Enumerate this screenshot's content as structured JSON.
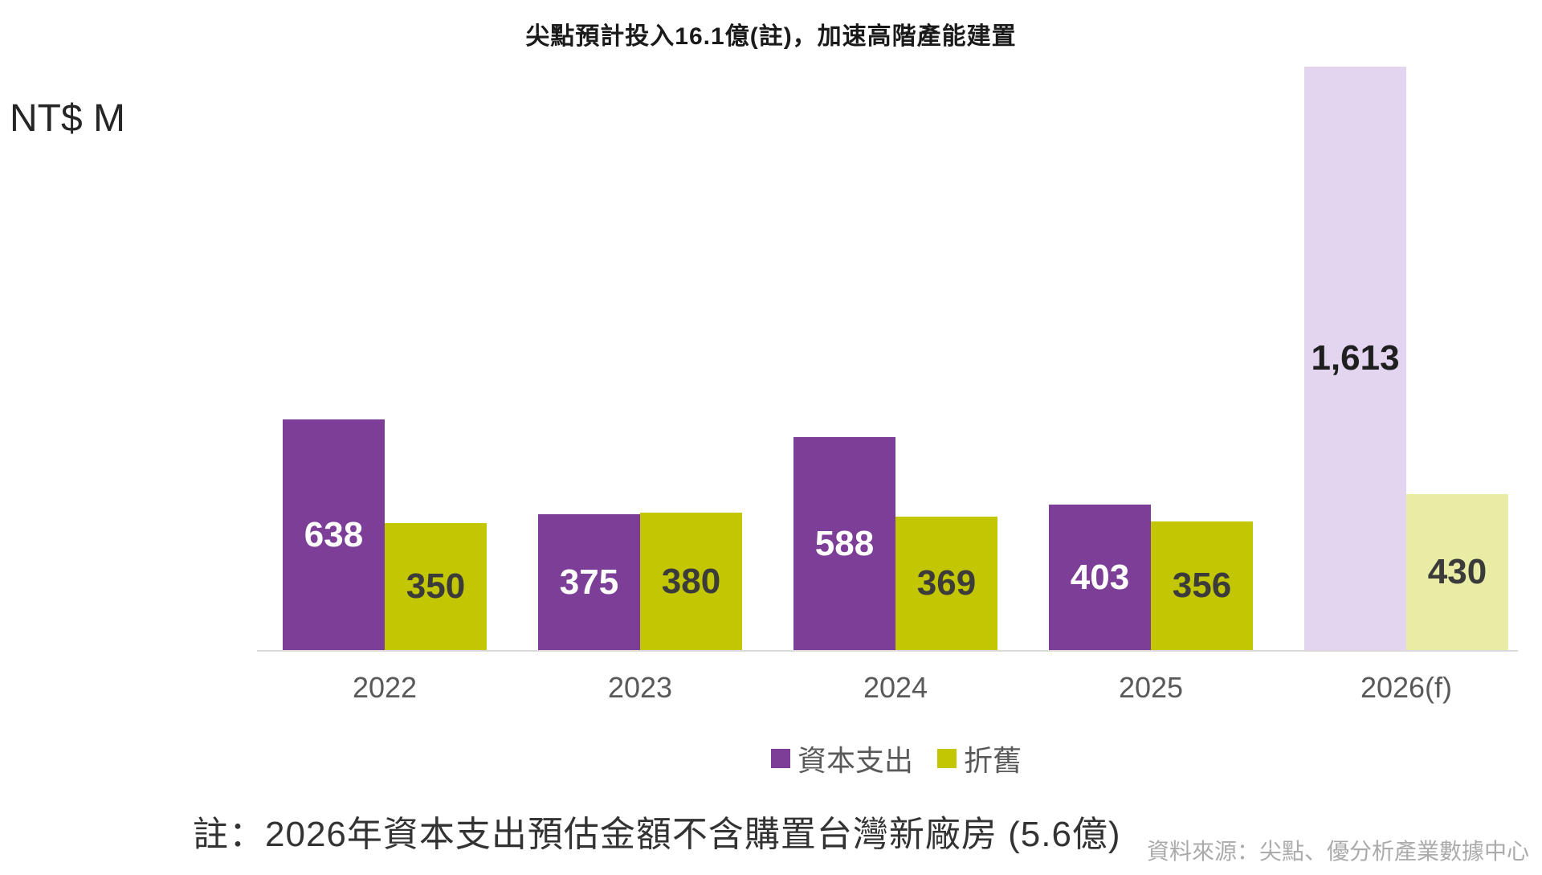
{
  "title": "尖點預計投入16.1億(註)，加速高階產能建置",
  "unit_label": "NT$ M",
  "note": "註：2026年資本支出預估金額不含購置台灣新廠房 (5.6億)",
  "source": "資料來源：尖點、優分析產業數據中心",
  "legend": [
    {
      "label": "資本支出",
      "color": "#7C3E97"
    },
    {
      "label": "折舊",
      "color": "#C3C602"
    }
  ],
  "colors": {
    "capex": "#7C3E97",
    "capex_forecast": "#E3D4EF",
    "depreciation": "#C3C602",
    "depreciation_forecast": "#E9ECA4",
    "label_on_capex": "#FFFFFF",
    "label_on_depreciation": "#3B3B3B",
    "label_on_forecast": "#1F1F1F",
    "axis_line": "#D9D9D9",
    "category_text": "#595959",
    "legend_text": "#595959",
    "title_text": "#1A1A1A",
    "note_text": "#333333",
    "source_text": "#ABABAB"
  },
  "chart_data": {
    "type": "bar",
    "title": "尖點預計投入16.1億(註)，加速高階產能建置",
    "unit": "NT$ M",
    "categories": [
      "2022",
      "2023",
      "2024",
      "2025",
      "2026(f)"
    ],
    "forecast_category": "2026(f)",
    "series": [
      {
        "name": "資本支出",
        "values": [
          638,
          375,
          588,
          403,
          1613
        ],
        "labels": [
          "638",
          "375",
          "588",
          "403",
          "1,613"
        ]
      },
      {
        "name": "折舊",
        "values": [
          350,
          380,
          369,
          356,
          430
        ],
        "labels": [
          "350",
          "380",
          "369",
          "356",
          "430"
        ]
      }
    ],
    "ylim": [
      0,
      1613
    ],
    "grid": false,
    "legend_position": "bottom"
  }
}
